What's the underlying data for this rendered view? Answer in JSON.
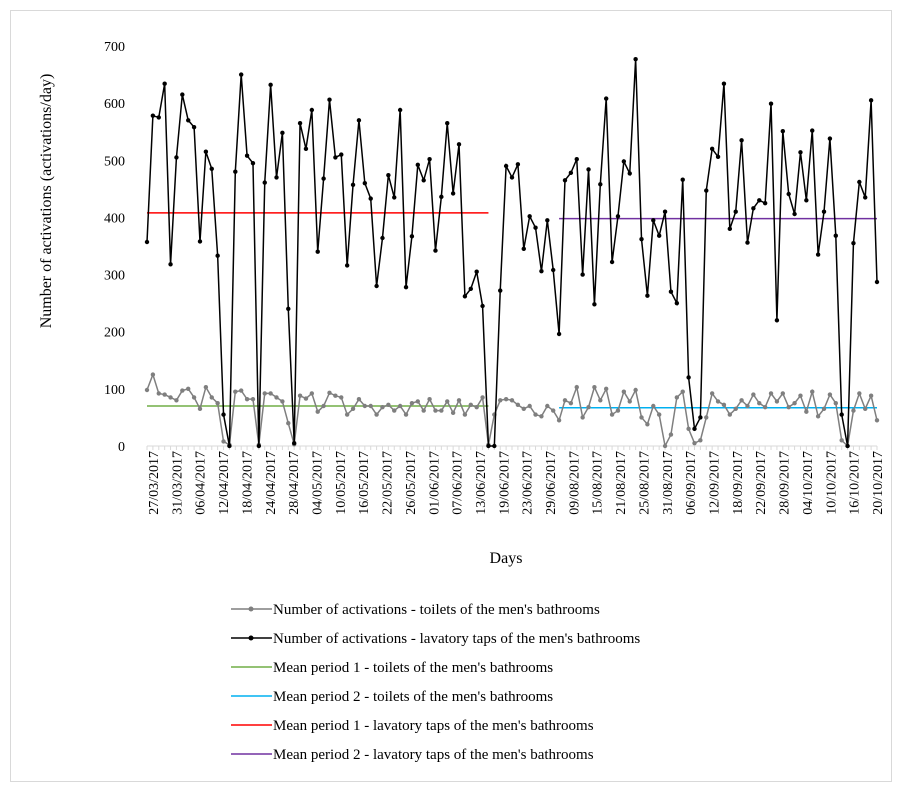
{
  "chart_data": {
    "type": "line",
    "title": "",
    "xlabel": "Days",
    "ylabel": "Number of activations (activations/day)",
    "ylim": [
      0,
      700
    ],
    "yticks": [
      0,
      100,
      200,
      300,
      400,
      500,
      600,
      700
    ],
    "grid": false,
    "legend_position": "bottom",
    "x_tick_labels": [
      "27/03/2017",
      "31/03/2017",
      "06/04/2017",
      "12/04/2017",
      "18/04/2017",
      "24/04/2017",
      "28/04/2017",
      "04/05/2017",
      "10/05/2017",
      "16/05/2017",
      "22/05/2017",
      "26/05/2017",
      "01/06/2017",
      "07/06/2017",
      "13/06/2017",
      "19/06/2017",
      "23/06/2017",
      "29/06/2017",
      "09/08/2017",
      "15/08/2017",
      "21/08/2017",
      "25/08/2017",
      "31/08/2017",
      "06/09/2017",
      "12/09/2017",
      "18/09/2017",
      "22/09/2017",
      "28/09/2017",
      "04/10/2017",
      "10/10/2017",
      "16/10/2017",
      "20/10/2017"
    ],
    "period_1_points": 59,
    "period_2_points": 55,
    "series": [
      {
        "name": "Number of activations - toilets of the men's bathrooms",
        "color": "#7f7f7f",
        "values": [
          98,
          125,
          92,
          90,
          85,
          80,
          97,
          100,
          85,
          65,
          103,
          85,
          75,
          8,
          2,
          95,
          97,
          82,
          82,
          2,
          92,
          92,
          85,
          78,
          40,
          3,
          88,
          83,
          92,
          60,
          70,
          93,
          88,
          85,
          55,
          65,
          82,
          70,
          70,
          55,
          68,
          72,
          62,
          70,
          55,
          75,
          78,
          62,
          82,
          62,
          62,
          78,
          58,
          80,
          55,
          72,
          68,
          85,
          2,
          55,
          80,
          82,
          80,
          72,
          65,
          70,
          55,
          52,
          70,
          62,
          45,
          80,
          75,
          103,
          50,
          68,
          103,
          80,
          100,
          55,
          62,
          95,
          78,
          98,
          50,
          38,
          70,
          55,
          0,
          20,
          85,
          95,
          30,
          5,
          10,
          50,
          92,
          78,
          72,
          55,
          65,
          80,
          70,
          90,
          75,
          68,
          92,
          78,
          92,
          68,
          75,
          88,
          60,
          95,
          52,
          65,
          90,
          75,
          10,
          0,
          62,
          92,
          65,
          88,
          45
        ]
      },
      {
        "name": "Number of activations - lavatory taps of the men's bathrooms",
        "color": "#000000",
        "values": [
          357,
          578,
          575,
          634,
          318,
          505,
          615,
          570,
          558,
          358,
          515,
          485,
          333,
          55,
          0,
          480,
          650,
          508,
          495,
          0,
          461,
          632,
          470,
          548,
          240,
          5,
          565,
          520,
          588,
          340,
          468,
          606,
          505,
          510,
          316,
          457,
          570,
          460,
          433,
          280,
          364,
          474,
          435,
          588,
          278,
          367,
          492,
          465,
          502,
          342,
          436,
          565,
          442,
          528,
          262,
          275,
          305,
          245,
          0,
          0,
          272,
          490,
          470,
          493,
          345,
          402,
          382,
          306,
          395,
          308,
          196,
          465,
          478,
          502,
          300,
          484,
          248,
          458,
          608,
          322,
          402,
          498,
          477,
          677,
          362,
          263,
          395,
          368,
          410,
          270,
          250,
          466,
          120,
          30,
          50,
          447,
          520,
          506,
          634,
          380,
          410,
          535,
          356,
          416,
          430,
          425,
          599,
          220,
          551,
          441,
          406,
          514,
          430,
          552,
          335,
          410,
          538,
          368,
          55,
          0,
          355,
          462,
          435,
          605,
          287
        ]
      },
      {
        "name": "Mean period 1 - toilets of the men's bathrooms",
        "color": "#70ad47",
        "value": 70
      },
      {
        "name": "Mean period 2 - toilets of the men's bathrooms",
        "color": "#00b0f0",
        "value": 67
      },
      {
        "name": "Mean period 1 - lavatory taps of the men's bathrooms",
        "color": "#ff0000",
        "value": 408
      },
      {
        "name": "Mean period 2 - lavatory taps of the men's bathrooms",
        "color": "#7030a0",
        "value": 398
      }
    ]
  }
}
